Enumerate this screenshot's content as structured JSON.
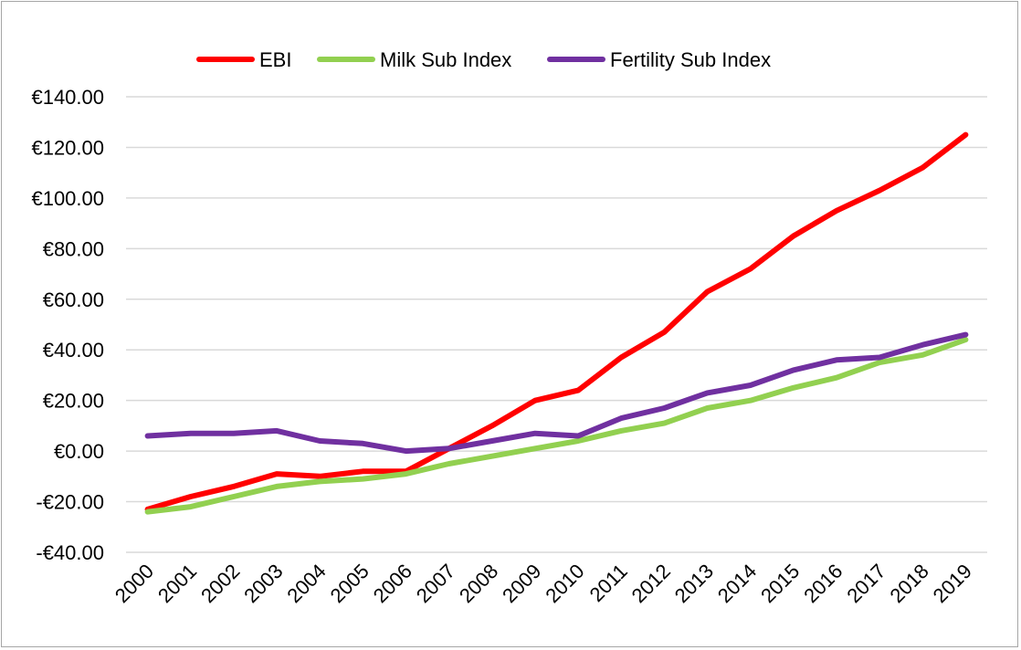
{
  "chart_data": {
    "type": "line",
    "title": "",
    "xlabel": "",
    "ylabel": "",
    "x": [
      "2000",
      "2001",
      "2002",
      "2003",
      "2004",
      "2005",
      "2006",
      "2007",
      "2008",
      "2009",
      "2010",
      "2011",
      "2012",
      "2013",
      "2014",
      "2015",
      "2016",
      "2017",
      "2018",
      "2019"
    ],
    "ylim": [
      -40,
      140
    ],
    "yticks": [
      140,
      120,
      100,
      80,
      60,
      40,
      20,
      0,
      -20,
      -40
    ],
    "ytick_labels": [
      "€140.00",
      "€120.00",
      "€100.00",
      "€80.00",
      "€60.00",
      "€40.00",
      "€20.00",
      "€0.00",
      "-€20.00",
      "-€40.00"
    ],
    "grid": true,
    "legend_position": "top",
    "series": [
      {
        "name": "EBI",
        "color": "#ff0000",
        "values": [
          -23,
          -18,
          -14,
          -9,
          -10,
          -8,
          -8,
          1,
          10,
          20,
          24,
          37,
          47,
          63,
          72,
          85,
          95,
          103,
          112,
          125
        ]
      },
      {
        "name": "Milk Sub Index",
        "color": "#92d050",
        "values": [
          -24,
          -22,
          -18,
          -14,
          -12,
          -11,
          -9,
          -5,
          -2,
          1,
          4,
          8,
          11,
          17,
          20,
          25,
          29,
          35,
          38,
          44
        ]
      },
      {
        "name": "Fertility Sub Index",
        "color": "#7030a0",
        "values": [
          6,
          7,
          7,
          8,
          4,
          3,
          0,
          1,
          4,
          7,
          6,
          13,
          17,
          23,
          26,
          32,
          36,
          37,
          42,
          46
        ]
      }
    ]
  }
}
